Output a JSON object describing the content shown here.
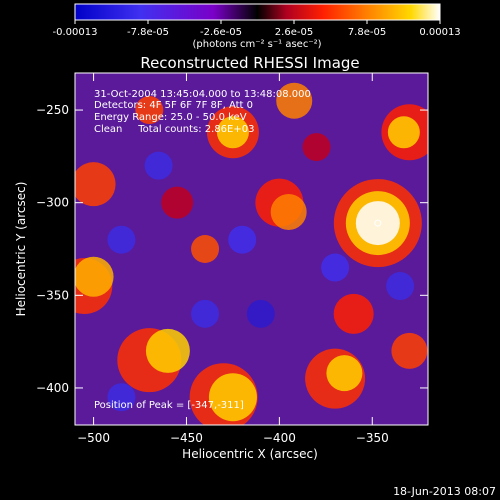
{
  "chart_data": {
    "type": "heatmap",
    "title": "Reconstructed RHESSI Image",
    "xlabel": "Heliocentric X (arcsec)",
    "ylabel": "Heliocentric Y (arcsec)",
    "xlim": [
      -510,
      -320
    ],
    "ylim": [
      -420,
      -230
    ],
    "x_ticks": [
      -500,
      -450,
      -400,
      -350
    ],
    "y_ticks": [
      -250,
      -300,
      -350,
      -400
    ],
    "colorbar": {
      "min": -0.00013,
      "max": 0.00013,
      "tick_labels": [
        "-0.00013",
        "-7.8e-05",
        "-2.6e-05",
        "2.6e-05",
        "7.8e-05",
        "0.00013"
      ],
      "tick_values": [
        -0.00013,
        -7.8e-05,
        -2.6e-05,
        2.6e-05,
        7.8e-05,
        0.00013
      ],
      "units_text": "(photons cm⁻² s⁻¹ asec⁻²)",
      "colors": [
        "#0000c8",
        "#3b2de6",
        "#ffffff",
        "#7a00c8",
        "#c00020",
        "#ff3000",
        "#ff8000",
        "#ffd000",
        "#ffffff"
      ]
    },
    "annotations": {
      "time_range": "31-Oct-2004 13:45:04.000 to 13:48:08.000",
      "detectors": "Detectors: 4F 5F 6F 7F 8F, Att 0",
      "energy_range": "Energy Range: 25.0 - 50.0 keV",
      "method_counts": "Clean     Total counts: 2.86E+03",
      "peak": "Position of Peak = [-347,-311]"
    },
    "peak": [
      -347,
      -311
    ]
  },
  "timestamp": "18-Jun-2013 08:07"
}
